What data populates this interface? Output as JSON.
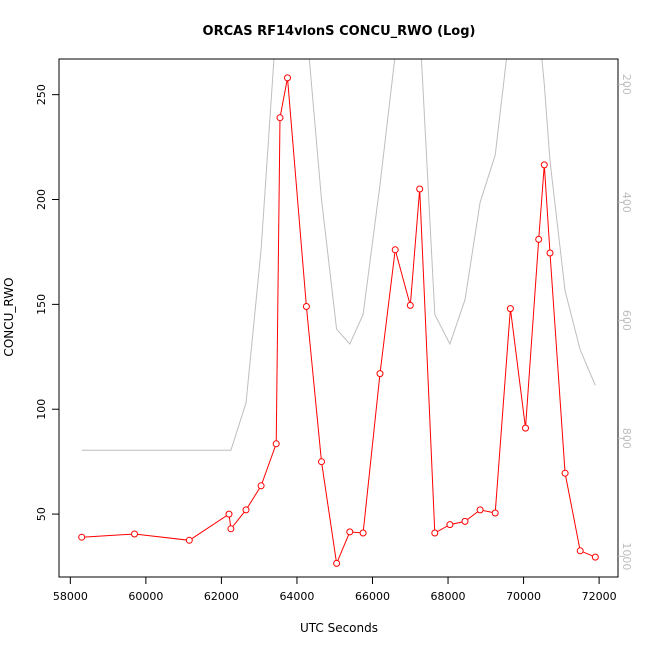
{
  "chart_data": {
    "type": "line",
    "title": "ORCAS RF14vlonS CONCU_RWO (Log)",
    "xlabel": "UTC Seconds",
    "ylabel": "CONCU_RWO",
    "xlim": [
      57700,
      72500
    ],
    "ylim": [
      20,
      267
    ],
    "x_ticks": [
      58000,
      60000,
      62000,
      64000,
      66000,
      68000,
      70000,
      72000
    ],
    "y_ticks": [
      50,
      100,
      150,
      200,
      250
    ],
    "secondary_axis": {
      "side": "right",
      "ylim_top": 157,
      "ylim_bottom": 1035,
      "ticks": [
        200,
        400,
        600,
        800,
        1000
      ],
      "color": "#bebebe"
    },
    "grid": false,
    "series": [
      {
        "color": "#ff0000",
        "marker": "open-circle",
        "axis": "left",
        "x": [
          58300,
          59700,
          61150,
          62200,
          62250,
          62650,
          63050,
          63450,
          63550,
          63750,
          64250,
          64650,
          65050,
          65400,
          65750,
          66200,
          66600,
          67000,
          67250,
          67650,
          68050,
          68450,
          68850,
          69250,
          69650,
          70050,
          70400,
          70550,
          70700,
          71100,
          71500,
          71900
        ],
        "y": [
          39,
          40.5,
          37.5,
          50,
          43,
          52,
          63.5,
          83.5,
          239,
          258,
          149,
          75,
          26.5,
          41.5,
          41,
          117,
          176,
          149.5,
          205,
          41,
          45,
          46.5,
          52,
          50.5,
          148,
          91,
          181,
          216.5,
          174.5,
          69.5,
          32.5,
          29.5
        ]
      },
      {
        "color": "#bebebe",
        "axis": "right",
        "x": [
          58300,
          62250,
          62650,
          63050,
          63450,
          64250,
          64650,
          65050,
          65400,
          65750,
          66200,
          66600,
          67000,
          67250,
          67650,
          68050,
          68450,
          68850,
          69250,
          69650,
          70050,
          70400,
          70550,
          70700,
          71100,
          71500,
          71900
        ],
        "y": [
          820,
          820,
          740,
          480,
          100,
          100,
          395,
          615,
          640,
          590,
          370,
          150,
          150,
          100,
          590,
          640,
          565,
          400,
          320,
          100,
          100,
          100,
          200,
          330,
          550,
          650,
          710
        ]
      }
    ]
  }
}
